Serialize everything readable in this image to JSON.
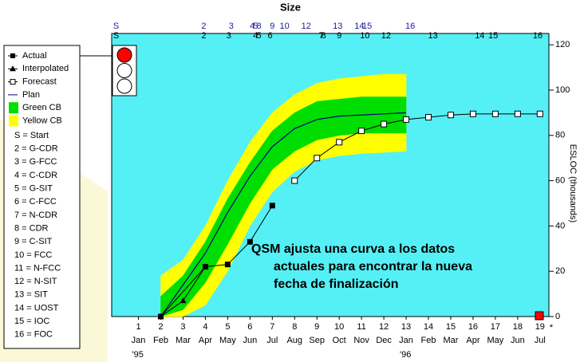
{
  "chart_data": {
    "type": "line",
    "title": "Size",
    "y_label": "ESLOC (thousands)",
    "annotation": [
      "QSM ajusta una curva a los datos",
      "actuales para encontrar la nueva",
      "fecha de finalización"
    ],
    "xlim": [
      -0.2,
      19.4
    ],
    "xticks": [
      1,
      2,
      3,
      4,
      5,
      6,
      7,
      8,
      9,
      10,
      11,
      12,
      13,
      14,
      15,
      16,
      17,
      18,
      19
    ],
    "month_labels": [
      "Jan",
      "Feb",
      "Mar",
      "Apr",
      "May",
      "Jun",
      "Jul",
      "Aug",
      "Sep",
      "Oct",
      "Nov",
      "Dec",
      "Jan",
      "Feb",
      "Mar",
      "Apr",
      "May",
      "Jun",
      "Jul"
    ],
    "year_labels": [
      {
        "value": 1,
        "label": "'95"
      },
      {
        "value": 13,
        "label": "'96"
      }
    ],
    "x_end_label": "*",
    "ylim": [
      0,
      125
    ],
    "yticks": [
      0,
      20,
      40,
      60,
      80,
      100,
      120
    ],
    "plot_color": "#55f0f5",
    "series": [
      {
        "name": "Actual",
        "color": "#000000",
        "marker": "filled-square",
        "x": [
          2,
          4,
          5,
          6,
          7
        ],
        "values": [
          0,
          22,
          23,
          33,
          49
        ]
      },
      {
        "name": "Interpolated",
        "color": "#000000",
        "marker": "triangle",
        "x": [
          2,
          3,
          4
        ],
        "values": [
          0,
          7,
          22
        ]
      },
      {
        "name": "Forecast",
        "color": "#000000",
        "marker": "open-square",
        "x": [
          8,
          9,
          10,
          11,
          12,
          13,
          14,
          15,
          16,
          17,
          18,
          19
        ],
        "values": [
          60,
          70,
          77,
          82,
          85,
          87,
          88,
          89,
          89.5,
          89.5,
          89.5,
          89.5
        ]
      },
      {
        "name": "Plan",
        "color": "#000080",
        "marker": "none",
        "x": [
          2,
          3,
          4,
          5,
          6,
          7,
          8,
          9,
          10,
          11,
          12,
          13
        ],
        "values": [
          0,
          14,
          28,
          46,
          62,
          75,
          83,
          87,
          88.5,
          89,
          89.5,
          90
        ]
      }
    ],
    "bands": [
      {
        "name": "Yellow CB",
        "color": "#ffff00",
        "x": [
          2,
          3,
          4,
          5,
          6,
          7,
          8,
          9,
          10,
          11,
          12,
          13
        ],
        "lower": [
          0,
          0,
          5,
          20,
          40,
          55,
          64,
          69,
          71,
          72,
          72.5,
          73
        ],
        "upper": [
          18,
          25,
          40,
          60,
          77,
          90,
          98,
          103,
          105,
          106,
          107,
          107
        ]
      },
      {
        "name": "Green CB",
        "color": "#00dd00",
        "x": [
          2,
          3,
          4,
          5,
          6,
          7,
          8,
          9,
          10,
          11,
          12,
          13
        ],
        "lower": [
          0,
          3,
          15,
          32,
          50,
          65,
          73,
          78,
          80,
          81,
          81,
          81
        ],
        "upper": [
          9,
          18,
          33,
          52,
          68,
          82,
          90,
          95,
          96,
          97,
          97,
          97
        ]
      }
    ],
    "key": [
      "S = Start",
      "2 = G-CDR",
      "3 = G-FCC",
      "4 = C-CDR",
      "5 = G-SIT",
      "6 = C-FCC",
      "7 = N-CDR",
      "8 = CDR",
      "9 = C-SIT",
      "10 = FCC",
      "11 = N-FCC",
      "12 = N-SIT",
      "13 = SIT",
      "14 = UOST",
      "15 = IOC",
      "16 = FOC"
    ],
    "milestones": [
      {
        "color": "#1a1aa0",
        "items": [
          {
            "label": "S",
            "x": 0
          },
          {
            "label": "2",
            "x": 3.93
          },
          {
            "label": "3",
            "x": 5.16
          },
          {
            "label": "4",
            "x": 6.1
          },
          {
            "label": "5",
            "x": 6.25
          },
          {
            "label": "8",
            "x": 6.4
          },
          {
            "label": "9",
            "x": 7.0
          },
          {
            "label": "10",
            "x": 7.55
          },
          {
            "label": "12",
            "x": 8.52
          },
          {
            "label": "13",
            "x": 9.93
          },
          {
            "label": "14",
            "x": 10.9
          },
          {
            "label": "15",
            "x": 11.25
          },
          {
            "label": "16",
            "x": 13.18
          }
        ]
      },
      {
        "color": "#000000",
        "items": [
          {
            "label": "S",
            "x": 0
          },
          {
            "label": "2",
            "x": 3.93
          },
          {
            "label": "3",
            "x": 5.05
          },
          {
            "label": "4",
            "x": 6.25
          },
          {
            "label": "5",
            "x": 6.4
          },
          {
            "label": "6",
            "x": 6.9
          },
          {
            "label": "7",
            "x": 9.2
          },
          {
            "label": "8",
            "x": 9.3
          },
          {
            "label": "9",
            "x": 10.0
          },
          {
            "label": "10",
            "x": 11.15
          },
          {
            "label": "12",
            "x": 12.1
          },
          {
            "label": "13",
            "x": 14.2
          },
          {
            "label": "14",
            "x": 16.3
          },
          {
            "label": "15",
            "x": 16.9
          },
          {
            "label": "16",
            "x": 18.9
          }
        ]
      }
    ]
  }
}
